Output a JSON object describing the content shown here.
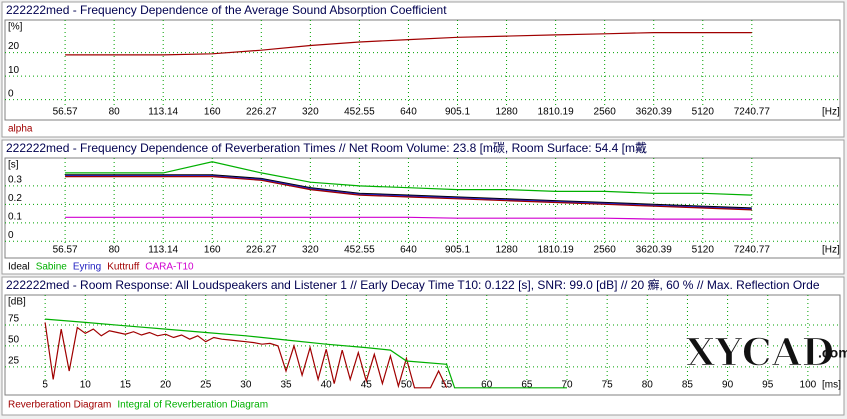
{
  "chart_data": [
    {
      "type": "line",
      "title": "222222med - Frequency Dependence of the Average Sound Absorption Coefficient",
      "xscale": "log",
      "xlim": [
        37,
        13500
      ],
      "ylim": [
        -1,
        33
      ],
      "y_unit": "[%]",
      "x_unit": "[Hz]",
      "grid": true,
      "x": [
        56.57,
        80,
        113.14,
        160,
        226.27,
        320,
        452.55,
        640,
        905.1,
        1280,
        1810.19,
        2560,
        3620.39,
        5120,
        7240.77
      ],
      "xticks": [
        56.57,
        80,
        113.14,
        160,
        226.27,
        320,
        452.55,
        640,
        905.1,
        1280,
        1810.19,
        2560,
        3620.39,
        5120,
        7240.77
      ],
      "yticks": [
        0,
        10,
        20
      ],
      "series": [
        {
          "name": "alpha",
          "color": "#a00000",
          "values": [
            19,
            19,
            19,
            19.5,
            21,
            23,
            24.5,
            25.5,
            26.5,
            27,
            27.5,
            28,
            28.5,
            28.5,
            28.5
          ]
        }
      ]
    },
    {
      "type": "line",
      "title": "222222med - Frequency Dependence of Reverberation Times // Net Room Volume: 23.8 [m碳, Room Surface: 54.4 [m戴",
      "xscale": "log",
      "xlim": [
        37,
        13500
      ],
      "ylim": [
        -0.02,
        0.44
      ],
      "y_unit": "[s]",
      "x_unit": "[Hz]",
      "grid": true,
      "x": [
        56.57,
        80,
        113.14,
        160,
        226.27,
        320,
        452.55,
        640,
        905.1,
        1280,
        1810.19,
        2560,
        3620.39,
        5120,
        7240.77
      ],
      "xticks": [
        56.57,
        80,
        113.14,
        160,
        226.27,
        320,
        452.55,
        640,
        905.1,
        1280,
        1810.19,
        2560,
        3620.39,
        5120,
        7240.77
      ],
      "yticks": [
        0,
        0.1,
        0.2,
        0.3
      ],
      "series": [
        {
          "name": "Ideal",
          "color": "#000000",
          "values": [
            0.36,
            0.36,
            0.36,
            0.36,
            0.34,
            0.29,
            0.26,
            0.25,
            0.24,
            0.23,
            0.22,
            0.21,
            0.2,
            0.19,
            0.18
          ]
        },
        {
          "name": "Sabine",
          "color": "#00b000",
          "values": [
            0.37,
            0.37,
            0.37,
            0.43,
            0.37,
            0.32,
            0.3,
            0.29,
            0.28,
            0.28,
            0.27,
            0.27,
            0.26,
            0.26,
            0.25
          ]
        },
        {
          "name": "Eyring",
          "color": "#2020c0",
          "values": [
            0.355,
            0.355,
            0.355,
            0.355,
            0.335,
            0.285,
            0.255,
            0.245,
            0.235,
            0.225,
            0.215,
            0.205,
            0.195,
            0.185,
            0.175
          ]
        },
        {
          "name": "Kuttruff",
          "color": "#a00000",
          "values": [
            0.35,
            0.35,
            0.35,
            0.35,
            0.33,
            0.28,
            0.25,
            0.24,
            0.23,
            0.22,
            0.21,
            0.2,
            0.19,
            0.18,
            0.17
          ]
        },
        {
          "name": "CARA-T10",
          "color": "#d000d0",
          "values": [
            0.13,
            0.13,
            0.13,
            0.13,
            0.13,
            0.13,
            0.13,
            0.13,
            0.125,
            0.125,
            0.125,
            0.125,
            0.12,
            0.12,
            0.12
          ]
        }
      ]
    },
    {
      "type": "line",
      "title": "222222med - Room Response: All Loudspeakers and Listener 1 // Early Decay Time T10: 0.122 [s], SNR: 99.0 [dB] // 20 癬, 60 % // Max. Reflection Orde",
      "xscale": "linear",
      "xlim": [
        0,
        104
      ],
      "ylim": [
        -5,
        100
      ],
      "y_unit": "[dB]",
      "x_unit": "[ms]",
      "grid": true,
      "xticks": [
        5,
        10,
        15,
        20,
        25,
        30,
        35,
        40,
        45,
        50,
        55,
        60,
        65,
        70,
        75,
        80,
        85,
        90,
        95,
        100
      ],
      "yticks": [
        25,
        50,
        75
      ],
      "series": [
        {
          "name": "Reverberation Diagram",
          "color": "#a00000",
          "x": [
            5,
            6,
            7,
            8,
            9,
            10,
            11,
            12,
            13,
            14,
            15,
            16,
            17,
            18,
            19,
            20,
            21,
            22,
            23,
            24,
            25,
            26,
            27,
            28,
            29,
            30,
            31,
            32,
            33,
            34,
            35,
            36,
            37,
            38,
            39,
            40,
            41,
            42,
            43,
            44,
            45,
            46,
            47,
            48,
            49,
            50,
            51,
            52,
            53,
            54,
            55
          ],
          "values": [
            78,
            10,
            70,
            20,
            72,
            65,
            70,
            62,
            68,
            66,
            64,
            67,
            63,
            66,
            62,
            64,
            60,
            63,
            58,
            62,
            55,
            60,
            58,
            57,
            56,
            55,
            54,
            52,
            53,
            50,
            20,
            50,
            15,
            48,
            10,
            46,
            5,
            45,
            10,
            42,
            8,
            40,
            5,
            38,
            2,
            35,
            0,
            0,
            0,
            20,
            0
          ]
        },
        {
          "name": "Integral of Reverberation Diagram",
          "color": "#00b000",
          "x": [
            5,
            10,
            15,
            20,
            25,
            30,
            35,
            40,
            45,
            48,
            50,
            55,
            56,
            70
          ],
          "values": [
            82,
            78,
            74,
            70,
            66,
            62,
            57,
            52,
            48,
            45,
            32,
            28,
            0,
            0
          ]
        }
      ]
    }
  ],
  "watermark": {
    "main": "XYCAD",
    "suffix": ".com"
  }
}
